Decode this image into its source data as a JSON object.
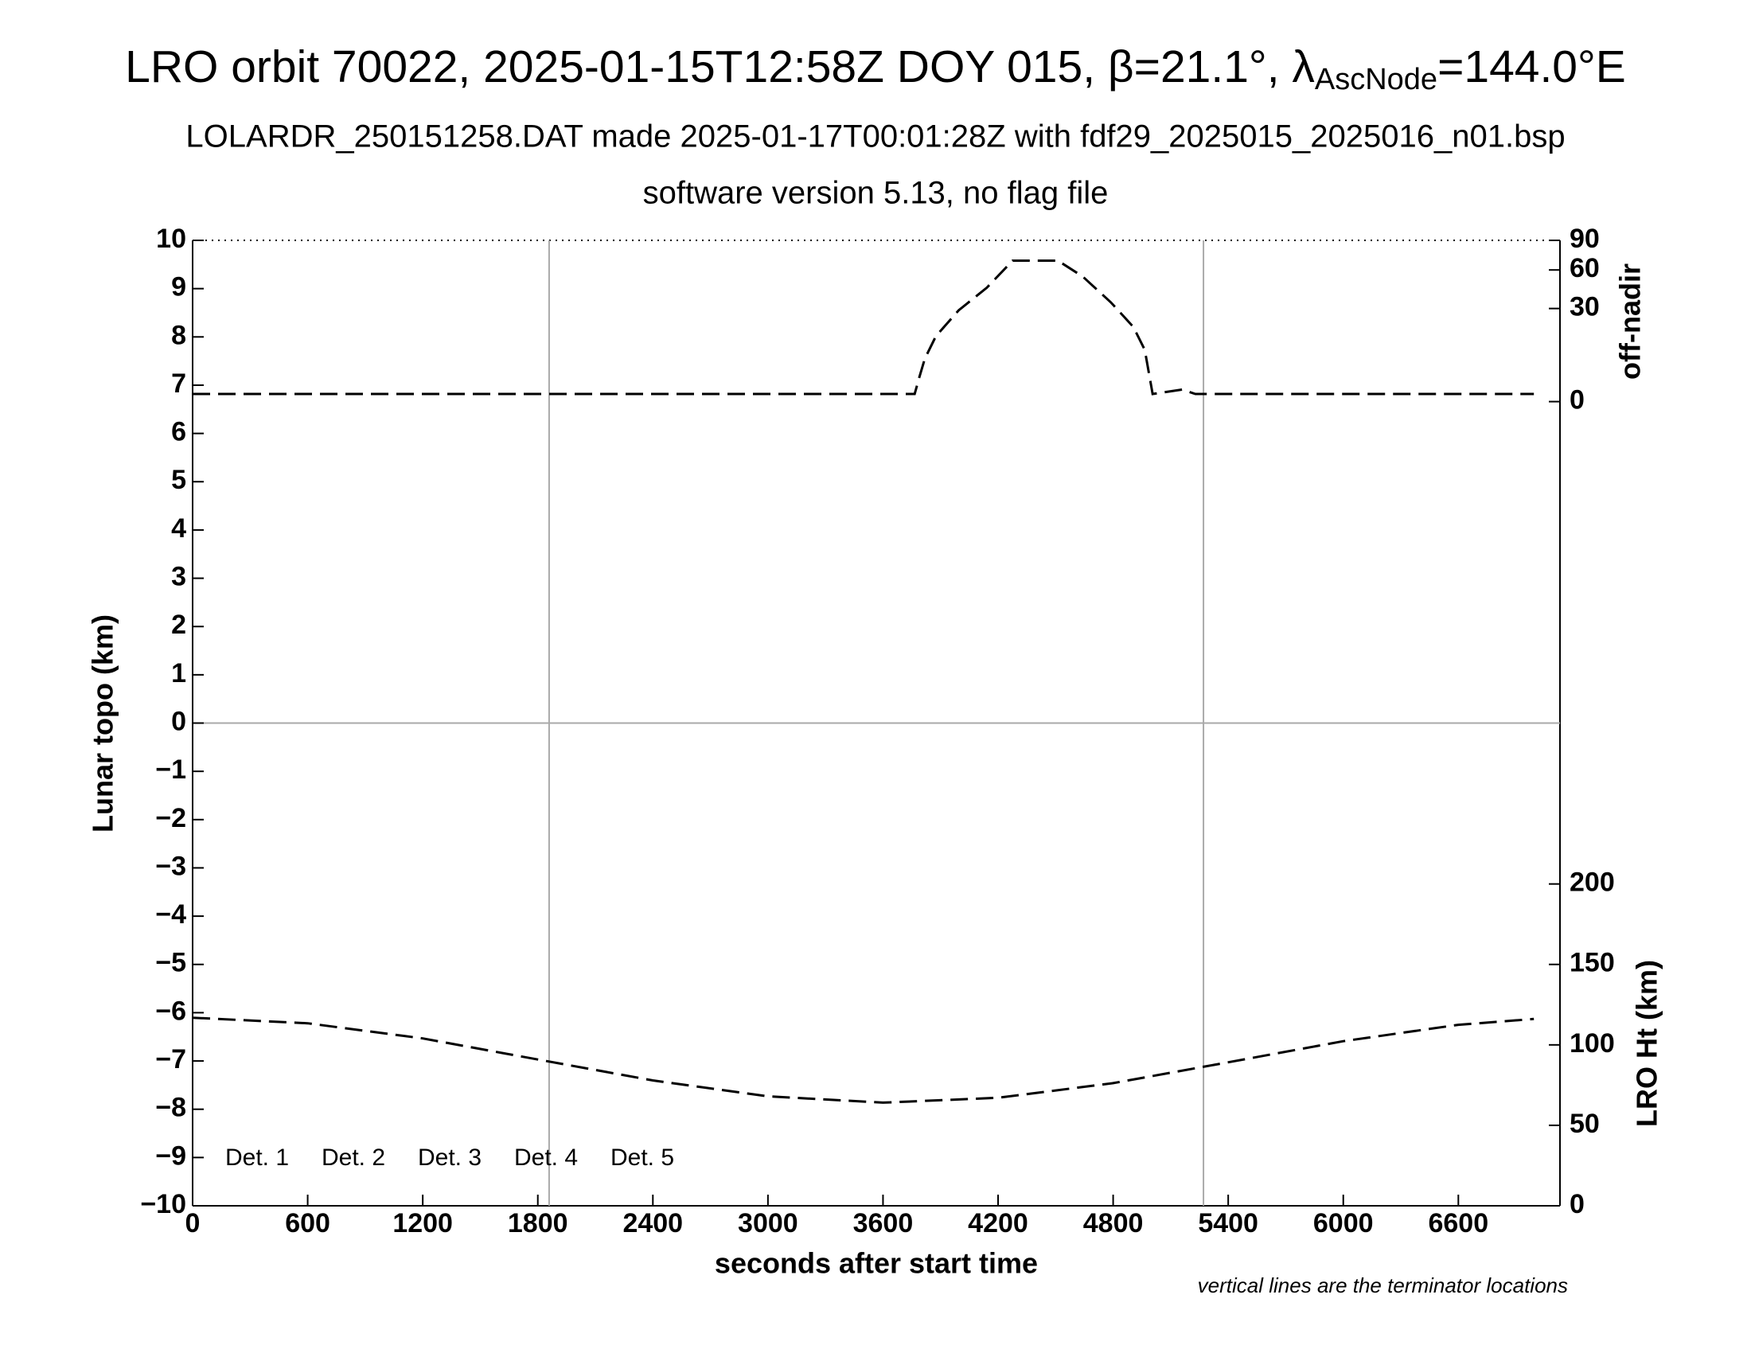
{
  "chart_data": {
    "type": "line",
    "title_parts": [
      "LRO orbit 70022, 2025-01-15T12:58Z DOY 015, β=21.1°, λ",
      "AscNode",
      "=144.0°E"
    ],
    "subtitle": "LOLARDR_250151258.DAT made 2025-01-17T00:01:28Z with fdf29_2025015_2025016_n01.bsp",
    "subtitle2": "software version 5.13, no flag file",
    "xlabel": "seconds after start time",
    "ylabel": "Lunar topo (km)",
    "y2label": "LRO Ht (km)",
    "y3label": "off-nadir",
    "note": "vertical lines are the terminator locations",
    "xlim": [
      0,
      7130
    ],
    "xticks": [
      0,
      600,
      1200,
      1800,
      2400,
      3000,
      3600,
      4200,
      4800,
      5400,
      6000,
      6600
    ],
    "ylim": [
      -10,
      10
    ],
    "yticks": [
      {
        "value": -10,
        "label": "−10"
      },
      {
        "value": -9,
        "label": "−9"
      },
      {
        "value": -8,
        "label": "−8"
      },
      {
        "value": -7,
        "label": "−7"
      },
      {
        "value": -6,
        "label": "−6"
      },
      {
        "value": -5,
        "label": "−5"
      },
      {
        "value": -4,
        "label": "−4"
      },
      {
        "value": -3,
        "label": "−3"
      },
      {
        "value": -2,
        "label": "−2"
      },
      {
        "value": -1,
        "label": "−1"
      },
      0,
      1,
      2,
      3,
      4,
      5,
      6,
      7,
      8,
      9,
      10
    ],
    "y2lim": [
      0,
      600
    ],
    "y2ticks": [
      0,
      50,
      100,
      150,
      200
    ],
    "y3lim": [
      0,
      90
    ],
    "y3ticks": [
      0,
      30,
      60,
      90
    ],
    "y3scale": "sqrt",
    "vlines": [
      1859,
      5271
    ],
    "hlines": [
      0
    ],
    "legend_items": [
      {
        "name": "Det. 1",
        "color": "#000000"
      },
      {
        "name": "Det. 2",
        "color": "#0000ff"
      },
      {
        "name": "Det. 3",
        "color": "#00ff00"
      },
      {
        "name": "Det. 4",
        "color": "#ffa500"
      },
      {
        "name": "Det. 5",
        "color": "#ff0000"
      }
    ],
    "series": [
      {
        "axis": "y3",
        "color": "#000000",
        "x": [
          0,
          3765,
          3788,
          3818,
          3876,
          3994,
          4141,
          4276,
          4512,
          4641,
          4788,
          4906,
          4965,
          5006,
          5159,
          5229,
          6994
        ],
        "values": [
          0.2,
          0.2,
          1.9,
          6.4,
          14.8,
          28.8,
          44.9,
          68.8,
          68.8,
          54.2,
          34.1,
          19.2,
          9.3,
          0.2,
          0.5,
          0.2,
          0.2
        ]
      },
      {
        "axis": "y2",
        "color": "#000000",
        "x": [
          0,
          600,
          1200,
          1800,
          2400,
          3000,
          3600,
          4200,
          4800,
          5400,
          6000,
          6600,
          6994
        ],
        "values": [
          116.9,
          113.4,
          104.0,
          90.9,
          77.9,
          68.0,
          64.1,
          67.1,
          76.2,
          89.2,
          102.3,
          112.5,
          116.1
        ]
      }
    ]
  }
}
